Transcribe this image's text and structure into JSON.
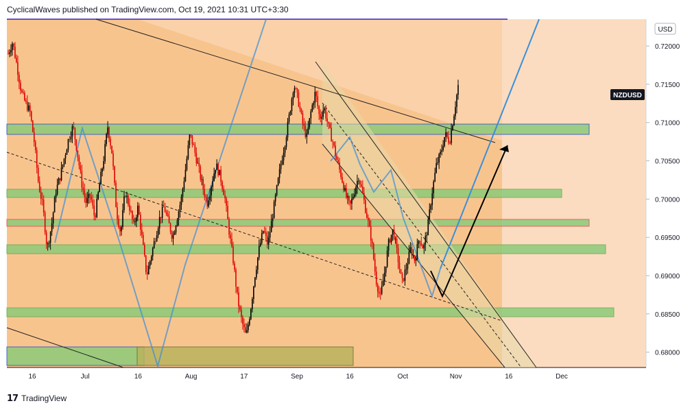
{
  "header": {
    "attribution": "CyclicalWaves published on TradingView.com, Oct 19, 2021 10:31 UTC+3:30"
  },
  "footer": {
    "brand": "TradingView",
    "logo_icon": "tradingview-logo-icon"
  },
  "colors": {
    "bg_orange": "#f8c48e",
    "bg_orange_light": "#fbdcc0",
    "candle_red": "#e00000",
    "candle_black": "#000000",
    "green_zone": "#8ccb7a",
    "blue_line": "#3b8fd8",
    "axis_text": "#131722"
  },
  "chart_data": {
    "type": "candlestick",
    "symbol": "NZDUSD",
    "currency": "USD",
    "last_value": 0.7148,
    "y_axis": {
      "range": [
        0.678,
        0.7235
      ],
      "ticks": [
        "0.72000",
        "0.71500",
        "0.71000",
        "0.70500",
        "0.70000",
        "0.69500",
        "0.69000",
        "0.68500",
        "0.68000"
      ]
    },
    "x_axis": {
      "ticks": [
        "16",
        "Jul",
        "16",
        "Aug",
        "17",
        "Sep",
        "16",
        "Oct",
        "Nov",
        "16",
        "Dec"
      ]
    },
    "price_series": [
      [
        0,
        0.719
      ],
      [
        2,
        0.7205
      ],
      [
        4,
        0.7175
      ],
      [
        6,
        0.714
      ],
      [
        8,
        0.7125
      ],
      [
        10,
        0.7115
      ],
      [
        12,
        0.7075
      ],
      [
        14,
        0.702
      ],
      [
        16,
        0.699
      ],
      [
        18,
        0.6935
      ],
      [
        20,
        0.6965
      ],
      [
        22,
        0.701
      ],
      [
        24,
        0.703
      ],
      [
        26,
        0.7055
      ],
      [
        28,
        0.708
      ],
      [
        30,
        0.7095
      ],
      [
        32,
        0.706
      ],
      [
        34,
        0.702
      ],
      [
        36,
        0.6995
      ],
      [
        38,
        0.7005
      ],
      [
        40,
        0.6975
      ],
      [
        42,
        0.7015
      ],
      [
        44,
        0.705
      ],
      [
        46,
        0.7095
      ],
      [
        48,
        0.706
      ],
      [
        50,
        0.6985
      ],
      [
        52,
        0.6955
      ],
      [
        54,
        0.701
      ],
      [
        56,
        0.699
      ],
      [
        58,
        0.6965
      ],
      [
        60,
        0.699
      ],
      [
        62,
        0.6945
      ],
      [
        64,
        0.69
      ],
      [
        66,
        0.6925
      ],
      [
        68,
        0.695
      ],
      [
        70,
        0.6975
      ],
      [
        72,
        0.699
      ],
      [
        74,
        0.697
      ],
      [
        76,
        0.695
      ],
      [
        78,
        0.6975
      ],
      [
        80,
        0.7
      ],
      [
        82,
        0.704
      ],
      [
        84,
        0.7085
      ],
      [
        86,
        0.7065
      ],
      [
        88,
        0.704
      ],
      [
        90,
        0.7015
      ],
      [
        92,
        0.6995
      ],
      [
        94,
        0.702
      ],
      [
        96,
        0.7045
      ],
      [
        98,
        0.703
      ],
      [
        100,
        0.7005
      ],
      [
        102,
        0.696
      ],
      [
        104,
        0.692
      ],
      [
        106,
        0.687
      ],
      [
        108,
        0.684
      ],
      [
        110,
        0.682
      ],
      [
        112,
        0.6855
      ],
      [
        114,
        0.69
      ],
      [
        116,
        0.6935
      ],
      [
        118,
        0.696
      ],
      [
        120,
        0.694
      ],
      [
        122,
        0.6975
      ],
      [
        124,
        0.701
      ],
      [
        126,
        0.7045
      ],
      [
        128,
        0.7075
      ],
      [
        130,
        0.711
      ],
      [
        132,
        0.715
      ],
      [
        134,
        0.713
      ],
      [
        136,
        0.71
      ],
      [
        138,
        0.708
      ],
      [
        140,
        0.7115
      ],
      [
        142,
        0.714
      ],
      [
        144,
        0.7105
      ],
      [
        146,
        0.712
      ],
      [
        148,
        0.7095
      ],
      [
        150,
        0.7075
      ],
      [
        152,
        0.705
      ],
      [
        154,
        0.703
      ],
      [
        156,
        0.7005
      ],
      [
        158,
        0.699
      ],
      [
        160,
        0.701
      ],
      [
        162,
        0.703
      ],
      [
        164,
        0.7005
      ],
      [
        166,
        0.6975
      ],
      [
        168,
        0.6945
      ],
      [
        170,
        0.6895
      ],
      [
        172,
        0.687
      ],
      [
        174,
        0.6905
      ],
      [
        176,
        0.6945
      ],
      [
        178,
        0.696
      ],
      [
        180,
        0.6925
      ],
      [
        182,
        0.689
      ],
      [
        184,
        0.691
      ],
      [
        186,
        0.6935
      ],
      [
        188,
        0.692
      ],
      [
        190,
        0.695
      ],
      [
        192,
        0.6935
      ],
      [
        194,
        0.6965
      ],
      [
        196,
        0.701
      ],
      [
        198,
        0.7045
      ],
      [
        200,
        0.706
      ],
      [
        202,
        0.7085
      ],
      [
        204,
        0.7075
      ],
      [
        206,
        0.711
      ],
      [
        208,
        0.7148
      ]
    ]
  }
}
